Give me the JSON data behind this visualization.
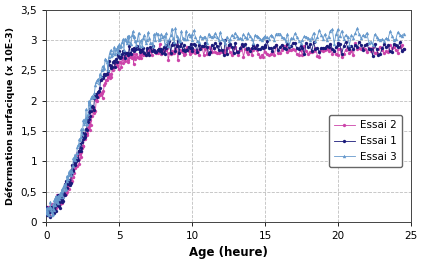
{
  "xlabel": "Age (heure)",
  "ylabel": "Déformation surfacique (x 10E-3)",
  "xlim": [
    0,
    25
  ],
  "ylim": [
    0,
    3.5
  ],
  "yticks": [
    0,
    0.5,
    1.0,
    1.5,
    2.0,
    2.5,
    3.0,
    3.5
  ],
  "xticks": [
    0,
    5,
    10,
    15,
    20,
    25
  ],
  "legend": [
    "Essai 1",
    "Essai 2",
    "Essai 3"
  ],
  "color1": "#1a1a7a",
  "color2": "#cc44aa",
  "color3": "#6699cc",
  "background_color": "#ffffff",
  "grid_color": "#aaaaaa",
  "plateau1": 2.88,
  "plateau2": 2.82,
  "plateau3": 3.05,
  "noise_level": 0.06
}
